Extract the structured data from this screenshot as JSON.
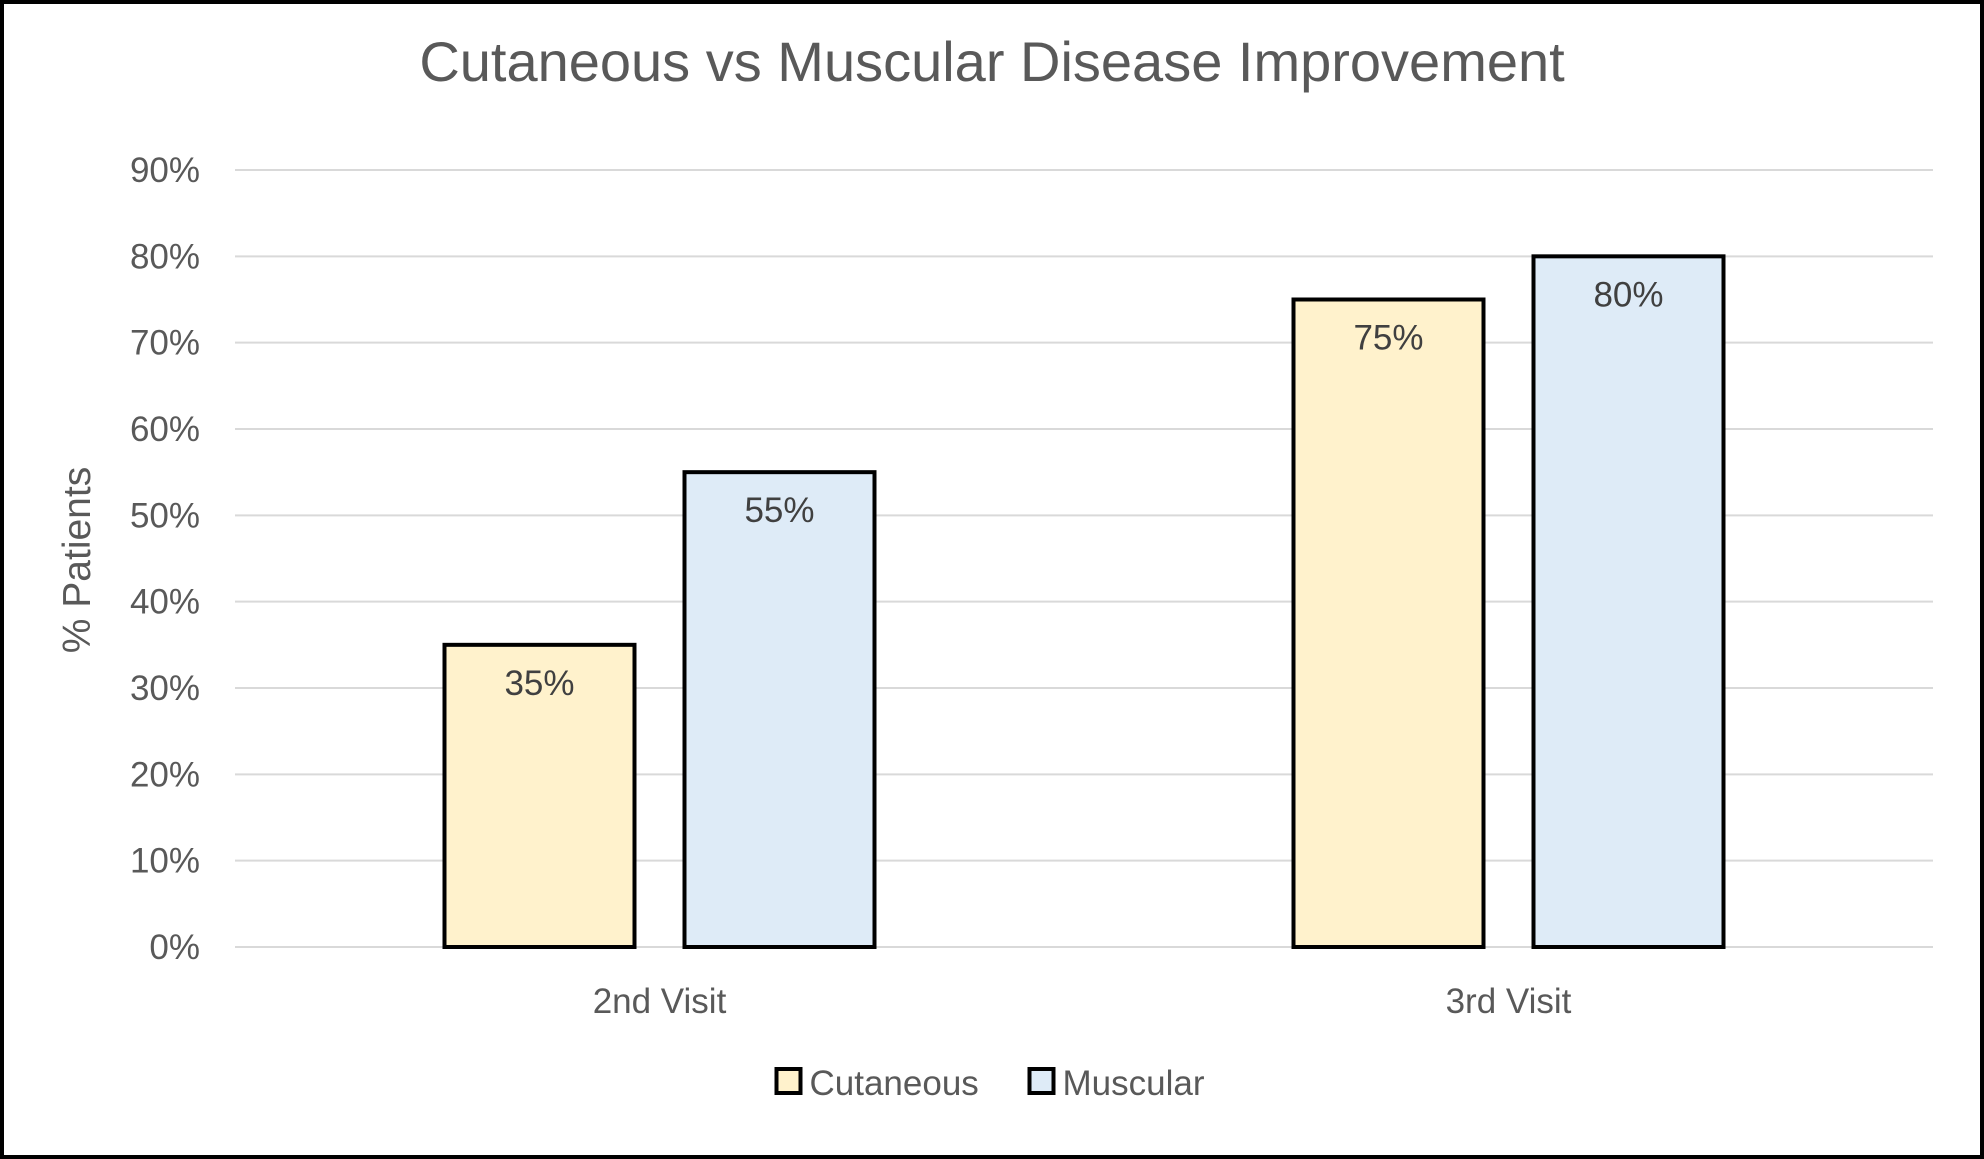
{
  "chart_data": {
    "type": "bar",
    "title": "Cutaneous vs Muscular Disease Improvement",
    "ylabel": "% Patients",
    "xlabel": "",
    "categories": [
      "2nd Visit",
      "3rd Visit"
    ],
    "series": [
      {
        "name": "Cutaneous",
        "values": [
          35,
          75
        ],
        "value_labels": [
          "35%",
          "75%"
        ],
        "color": "#FFF2CC"
      },
      {
        "name": "Muscular",
        "values": [
          55,
          80
        ],
        "value_labels": [
          "55%",
          "80%"
        ],
        "color": "#DEEBF7"
      }
    ],
    "ylim": [
      0,
      90
    ],
    "yticks": [
      0,
      10,
      20,
      30,
      40,
      50,
      60,
      70,
      80,
      90
    ],
    "ytick_labels": [
      "0%",
      "10%",
      "20%",
      "30%",
      "40%",
      "50%",
      "60%",
      "70%",
      "80%",
      "90%"
    ],
    "grid": true,
    "legend_position": "bottom",
    "bar_outline_color": "#000000",
    "gridline_color": "#D9D9D9"
  }
}
